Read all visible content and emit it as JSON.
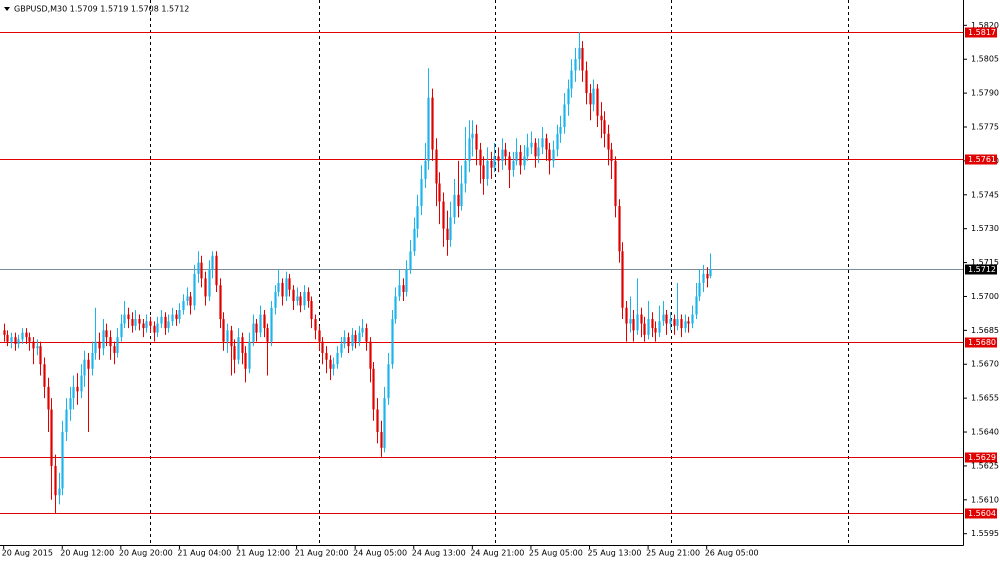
{
  "chart_data": {
    "type": "candlestick",
    "title": "GBPUSD,M30  1.5709 1.5719 1.5708 1.5712",
    "up_color": "#1cb4ec",
    "down_color": "#e00000",
    "level_color": "#e00000",
    "last_color": "#7a8d99",
    "xlim": [
      -1,
      262
    ],
    "ylim": [
      1.559,
      1.5829
    ],
    "xticks": [
      {
        "value": 0,
        "label": "20 Aug 2015"
      },
      {
        "value": 16,
        "label": "20 Aug 12:00"
      },
      {
        "value": 32,
        "label": "20 Aug 20:00"
      },
      {
        "value": 48,
        "label": "21 Aug 04:00"
      },
      {
        "value": 64,
        "label": "21 Aug 12:00"
      },
      {
        "value": 80,
        "label": "21 Aug 20:00"
      },
      {
        "value": 96,
        "label": "24 Aug 05:00"
      },
      {
        "value": 112,
        "label": "24 Aug 13:00"
      },
      {
        "value": 128,
        "label": "24 Aug 21:00"
      },
      {
        "value": 144,
        "label": "25 Aug 05:00"
      },
      {
        "value": 160,
        "label": "25 Aug 13:00"
      },
      {
        "value": 176,
        "label": "25 Aug 21:00"
      },
      {
        "value": 192,
        "label": "26 Aug 05:00"
      }
    ],
    "yticks": [
      {
        "value": 1.5595,
        "label": "1.5595"
      },
      {
        "value": 1.561,
        "label": "1.5610"
      },
      {
        "value": 1.5625,
        "label": "1.5625"
      },
      {
        "value": 1.564,
        "label": "1.5640"
      },
      {
        "value": 1.5655,
        "label": "1.5655"
      },
      {
        "value": 1.567,
        "label": "1.5670"
      },
      {
        "value": 1.5685,
        "label": "1.5685"
      },
      {
        "value": 1.57,
        "label": "1.5700"
      },
      {
        "value": 1.5715,
        "label": "1.5715"
      },
      {
        "value": 1.573,
        "label": "1.5730"
      },
      {
        "value": 1.5745,
        "label": "1.5745"
      },
      {
        "value": 1.576,
        "label": "1.5760"
      },
      {
        "value": 1.5775,
        "label": "1.5775"
      },
      {
        "value": 1.579,
        "label": "1.5790"
      },
      {
        "value": 1.5805,
        "label": "1.5805"
      },
      {
        "value": 1.582,
        "label": "1.5820"
      }
    ],
    "levels": [
      {
        "value": 1.5817,
        "label": "1.5817"
      },
      {
        "value": 1.5761,
        "label": "1.5761"
      },
      {
        "value": 1.568,
        "label": "1.5680"
      },
      {
        "value": 1.5629,
        "label": "1.5629"
      },
      {
        "value": 1.5604,
        "label": "1.5604"
      }
    ],
    "last_price": {
      "value": 1.5712,
      "label": "1.5712"
    },
    "candles": [
      [
        1.5685,
        1.5688,
        1.568,
        1.5683
      ],
      [
        1.5683,
        1.5685,
        1.5678,
        1.568
      ],
      [
        1.568,
        1.5684,
        1.5677,
        1.5682
      ],
      [
        1.5682,
        1.5684,
        1.5676,
        1.5679
      ],
      [
        1.5679,
        1.5683,
        1.5677,
        1.5681
      ],
      [
        1.5681,
        1.5686,
        1.5679,
        1.5684
      ],
      [
        1.5684,
        1.5686,
        1.5679,
        1.5682
      ],
      [
        1.5682,
        1.5684,
        1.5676,
        1.568
      ],
      [
        1.568,
        1.5682,
        1.567,
        1.5677
      ],
      [
        1.5677,
        1.5681,
        1.5674,
        1.5678
      ],
      [
        1.5678,
        1.568,
        1.5665,
        1.567
      ],
      [
        1.567,
        1.5673,
        1.5655,
        1.566
      ],
      [
        1.566,
        1.5664,
        1.564,
        1.565
      ],
      [
        1.565,
        1.5655,
        1.561,
        1.5625
      ],
      [
        1.5625,
        1.563,
        1.5604,
        1.5612
      ],
      [
        1.5612,
        1.5622,
        1.5608,
        1.5615
      ],
      [
        1.5615,
        1.5645,
        1.5612,
        1.564
      ],
      [
        1.564,
        1.5655,
        1.5636,
        1.565
      ],
      [
        1.565,
        1.566,
        1.5645,
        1.5655
      ],
      [
        1.5655,
        1.5665,
        1.565,
        1.566
      ],
      [
        1.566,
        1.5666,
        1.5652,
        1.5658
      ],
      [
        1.5658,
        1.567,
        1.5655,
        1.5665
      ],
      [
        1.5665,
        1.5676,
        1.566,
        1.5672
      ],
      [
        1.5672,
        1.5675,
        1.564,
        1.5668
      ],
      [
        1.5668,
        1.568,
        1.5665,
        1.5675
      ],
      [
        1.5675,
        1.5695,
        1.5672,
        1.568
      ],
      [
        1.568,
        1.5684,
        1.5672,
        1.5677
      ],
      [
        1.5677,
        1.569,
        1.5674,
        1.5685
      ],
      [
        1.5685,
        1.5688,
        1.5678,
        1.5682
      ],
      [
        1.5682,
        1.5685,
        1.5672,
        1.5678
      ],
      [
        1.5678,
        1.568,
        1.567,
        1.5675
      ],
      [
        1.5675,
        1.5686,
        1.5673,
        1.5682
      ],
      [
        1.5682,
        1.5692,
        1.568,
        1.5688
      ],
      [
        1.5688,
        1.5698,
        1.5686,
        1.5692
      ],
      [
        1.5692,
        1.5695,
        1.5686,
        1.569
      ],
      [
        1.569,
        1.5693,
        1.5684,
        1.5687
      ],
      [
        1.5687,
        1.5694,
        1.5685,
        1.569
      ],
      [
        1.569,
        1.5692,
        1.5685,
        1.5688
      ],
      [
        1.5688,
        1.569,
        1.5682,
        1.5686
      ],
      [
        1.5686,
        1.5692,
        1.5684,
        1.5689
      ],
      [
        1.5689,
        1.5691,
        1.5684,
        1.5687
      ],
      [
        1.5687,
        1.5689,
        1.568,
        1.5684
      ],
      [
        1.5684,
        1.5691,
        1.5682,
        1.5688
      ],
      [
        1.5688,
        1.5694,
        1.5686,
        1.5691
      ],
      [
        1.5691,
        1.5693,
        1.5683,
        1.5686
      ],
      [
        1.5686,
        1.5692,
        1.5684,
        1.5689
      ],
      [
        1.5689,
        1.5695,
        1.5687,
        1.5692
      ],
      [
        1.5692,
        1.5694,
        1.5687,
        1.569
      ],
      [
        1.569,
        1.5697,
        1.5688,
        1.5694
      ],
      [
        1.5694,
        1.5701,
        1.5692,
        1.5698
      ],
      [
        1.5698,
        1.5704,
        1.5696,
        1.57
      ],
      [
        1.57,
        1.5702,
        1.5692,
        1.5696
      ],
      [
        1.5696,
        1.5714,
        1.5694,
        1.571
      ],
      [
        1.571,
        1.572,
        1.5706,
        1.5715
      ],
      [
        1.5715,
        1.5718,
        1.5704,
        1.5708
      ],
      [
        1.5708,
        1.5711,
        1.5696,
        1.57
      ],
      [
        1.57,
        1.5716,
        1.5698,
        1.5712
      ],
      [
        1.5712,
        1.572,
        1.5708,
        1.5718
      ],
      [
        1.5718,
        1.572,
        1.5702,
        1.5705
      ],
      [
        1.5705,
        1.5708,
        1.5686,
        1.569
      ],
      [
        1.569,
        1.5693,
        1.5676,
        1.568
      ],
      [
        1.568,
        1.5688,
        1.5675,
        1.5685
      ],
      [
        1.5685,
        1.5687,
        1.5665,
        1.5678
      ],
      [
        1.5678,
        1.5681,
        1.5666,
        1.5672
      ],
      [
        1.5672,
        1.5686,
        1.567,
        1.5682
      ],
      [
        1.5682,
        1.5684,
        1.567,
        1.5675
      ],
      [
        1.5675,
        1.5678,
        1.5662,
        1.5668
      ],
      [
        1.5668,
        1.5684,
        1.5666,
        1.568
      ],
      [
        1.568,
        1.5692,
        1.5678,
        1.5688
      ],
      [
        1.5688,
        1.569,
        1.568,
        1.5684
      ],
      [
        1.5684,
        1.5696,
        1.5682,
        1.5692
      ],
      [
        1.5692,
        1.5694,
        1.5682,
        1.5686
      ],
      [
        1.5686,
        1.5688,
        1.5665,
        1.568
      ],
      [
        1.568,
        1.5698,
        1.5678,
        1.5695
      ],
      [
        1.5695,
        1.5705,
        1.5692,
        1.5702
      ],
      [
        1.5702,
        1.5712,
        1.57,
        1.5706
      ],
      [
        1.5706,
        1.5708,
        1.5696,
        1.57
      ],
      [
        1.57,
        1.5711,
        1.5698,
        1.5708
      ],
      [
        1.5708,
        1.571,
        1.57,
        1.5703
      ],
      [
        1.5703,
        1.5705,
        1.5694,
        1.5698
      ],
      [
        1.5698,
        1.5704,
        1.5696,
        1.57
      ],
      [
        1.57,
        1.5702,
        1.5693,
        1.5696
      ],
      [
        1.5696,
        1.5705,
        1.5694,
        1.5702
      ],
      [
        1.5702,
        1.5704,
        1.5695,
        1.5698
      ],
      [
        1.5698,
        1.57,
        1.5686,
        1.569
      ],
      [
        1.569,
        1.5692,
        1.5681,
        1.5685
      ],
      [
        1.5685,
        1.5687,
        1.5676,
        1.568
      ],
      [
        1.568,
        1.5682,
        1.567,
        1.5675
      ],
      [
        1.5675,
        1.5678,
        1.5666,
        1.5672
      ],
      [
        1.5672,
        1.5674,
        1.5663,
        1.5668
      ],
      [
        1.5668,
        1.5673,
        1.5665,
        1.567
      ],
      [
        1.567,
        1.5678,
        1.5668,
        1.5675
      ],
      [
        1.5675,
        1.5682,
        1.5673,
        1.5679
      ],
      [
        1.5679,
        1.5685,
        1.5677,
        1.5682
      ],
      [
        1.5682,
        1.5684,
        1.5675,
        1.5678
      ],
      [
        1.5678,
        1.5686,
        1.5676,
        1.5683
      ],
      [
        1.5683,
        1.5685,
        1.5677,
        1.568
      ],
      [
        1.568,
        1.5687,
        1.5678,
        1.5684
      ],
      [
        1.5684,
        1.569,
        1.5682,
        1.5686
      ],
      [
        1.5686,
        1.5688,
        1.5676,
        1.568
      ],
      [
        1.568,
        1.5682,
        1.5662,
        1.5668
      ],
      [
        1.5668,
        1.5671,
        1.5645,
        1.565
      ],
      [
        1.565,
        1.5655,
        1.5635,
        1.564
      ],
      [
        1.564,
        1.5645,
        1.5629,
        1.5633
      ],
      [
        1.5633,
        1.566,
        1.5631,
        1.5655
      ],
      [
        1.5655,
        1.5675,
        1.5652,
        1.567
      ],
      [
        1.567,
        1.5694,
        1.5668,
        1.569
      ],
      [
        1.569,
        1.5704,
        1.5688,
        1.57
      ],
      [
        1.57,
        1.5712,
        1.5698,
        1.5705
      ],
      [
        1.5705,
        1.5708,
        1.5698,
        1.5702
      ],
      [
        1.5702,
        1.5716,
        1.57,
        1.5712
      ],
      [
        1.5712,
        1.5725,
        1.571,
        1.572
      ],
      [
        1.572,
        1.5735,
        1.5718,
        1.573
      ],
      [
        1.573,
        1.5745,
        1.5726,
        1.574
      ],
      [
        1.574,
        1.5758,
        1.5736,
        1.5752
      ],
      [
        1.5752,
        1.5768,
        1.5748,
        1.576
      ],
      [
        1.576,
        1.5801,
        1.5756,
        1.5788
      ],
      [
        1.5788,
        1.5792,
        1.576,
        1.5765
      ],
      [
        1.5765,
        1.577,
        1.574,
        1.575
      ],
      [
        1.575,
        1.5755,
        1.5732,
        1.5742
      ],
      [
        1.5742,
        1.5746,
        1.5722,
        1.573
      ],
      [
        1.573,
        1.5738,
        1.5718,
        1.5725
      ],
      [
        1.5725,
        1.5742,
        1.5722,
        1.5735
      ],
      [
        1.5735,
        1.5752,
        1.5732,
        1.5745
      ],
      [
        1.5745,
        1.576,
        1.5735,
        1.574
      ],
      [
        1.574,
        1.5758,
        1.5738,
        1.575
      ],
      [
        1.575,
        1.5775,
        1.5746,
        1.576
      ],
      [
        1.576,
        1.5778,
        1.5755,
        1.577
      ],
      [
        1.577,
        1.5778,
        1.5762,
        1.5772
      ],
      [
        1.5772,
        1.5776,
        1.5758,
        1.5765
      ],
      [
        1.5765,
        1.5768,
        1.575,
        1.5758
      ],
      [
        1.5758,
        1.5762,
        1.5745,
        1.5752
      ],
      [
        1.5752,
        1.5766,
        1.5749,
        1.576
      ],
      [
        1.576,
        1.5764,
        1.5752,
        1.5757
      ],
      [
        1.5757,
        1.5768,
        1.5755,
        1.5762
      ],
      [
        1.5762,
        1.5766,
        1.5755,
        1.576
      ],
      [
        1.576,
        1.577,
        1.5756,
        1.5765
      ],
      [
        1.5765,
        1.5768,
        1.5758,
        1.5762
      ],
      [
        1.5762,
        1.5764,
        1.5748,
        1.5756
      ],
      [
        1.5756,
        1.5764,
        1.5753,
        1.576
      ],
      [
        1.576,
        1.577,
        1.5758,
        1.5764
      ],
      [
        1.5764,
        1.5767,
        1.5754,
        1.5758
      ],
      [
        1.5758,
        1.5767,
        1.5756,
        1.5762
      ],
      [
        1.5762,
        1.5772,
        1.576,
        1.5766
      ],
      [
        1.5766,
        1.5773,
        1.5763,
        1.5768
      ],
      [
        1.5768,
        1.577,
        1.5757,
        1.5762
      ],
      [
        1.5762,
        1.577,
        1.5759,
        1.5766
      ],
      [
        1.5766,
        1.5775,
        1.5763,
        1.577
      ],
      [
        1.577,
        1.5772,
        1.576,
        1.5765
      ],
      [
        1.5765,
        1.5768,
        1.5754,
        1.576
      ],
      [
        1.576,
        1.5769,
        1.5757,
        1.5765
      ],
      [
        1.5765,
        1.5776,
        1.5762,
        1.5772
      ],
      [
        1.5772,
        1.578,
        1.5768,
        1.5775
      ],
      [
        1.5775,
        1.579,
        1.5772,
        1.5785
      ],
      [
        1.5785,
        1.5796,
        1.578,
        1.5792
      ],
      [
        1.5792,
        1.5805,
        1.5788,
        1.58
      ],
      [
        1.58,
        1.581,
        1.5795,
        1.5805
      ],
      [
        1.5805,
        1.5817,
        1.58,
        1.581
      ],
      [
        1.581,
        1.5813,
        1.5795,
        1.58
      ],
      [
        1.58,
        1.5804,
        1.5785,
        1.579
      ],
      [
        1.579,
        1.5794,
        1.5778,
        1.5785
      ],
      [
        1.5785,
        1.5796,
        1.5782,
        1.5792
      ],
      [
        1.5792,
        1.5794,
        1.5775,
        1.578
      ],
      [
        1.578,
        1.5786,
        1.577,
        1.5778
      ],
      [
        1.5778,
        1.5782,
        1.5766,
        1.5772
      ],
      [
        1.5772,
        1.5776,
        1.5758,
        1.5765
      ],
      [
        1.5765,
        1.5768,
        1.5752,
        1.576
      ],
      [
        1.576,
        1.5762,
        1.5735,
        1.574
      ],
      [
        1.574,
        1.5743,
        1.5715,
        1.572
      ],
      [
        1.572,
        1.5724,
        1.569,
        1.5695
      ],
      [
        1.5695,
        1.5698,
        1.568,
        1.5688
      ],
      [
        1.5688,
        1.57,
        1.5684,
        1.569
      ],
      [
        1.569,
        1.5694,
        1.568,
        1.5685
      ],
      [
        1.5685,
        1.5708,
        1.5683,
        1.5692
      ],
      [
        1.5692,
        1.5695,
        1.5682,
        1.5688
      ],
      [
        1.5688,
        1.5691,
        1.568,
        1.5683
      ],
      [
        1.5683,
        1.5698,
        1.5681,
        1.569
      ],
      [
        1.569,
        1.5693,
        1.5682,
        1.5686
      ],
      [
        1.5686,
        1.5689,
        1.568,
        1.5684
      ],
      [
        1.5684,
        1.5696,
        1.5682,
        1.5689
      ],
      [
        1.5689,
        1.5698,
        1.5687,
        1.5692
      ],
      [
        1.5692,
        1.5694,
        1.5683,
        1.5688
      ],
      [
        1.5688,
        1.5693,
        1.5685,
        1.569
      ],
      [
        1.569,
        1.5692,
        1.5683,
        1.5687
      ],
      [
        1.5687,
        1.5706,
        1.5685,
        1.569
      ],
      [
        1.569,
        1.5692,
        1.5682,
        1.5686
      ],
      [
        1.5686,
        1.5692,
        1.5684,
        1.5689
      ],
      [
        1.5689,
        1.5691,
        1.5684,
        1.5688
      ],
      [
        1.5688,
        1.5696,
        1.5686,
        1.5692
      ],
      [
        1.5692,
        1.5706,
        1.569,
        1.57
      ],
      [
        1.57,
        1.5712,
        1.5698,
        1.5706
      ],
      [
        1.5706,
        1.5714,
        1.5702,
        1.571
      ],
      [
        1.571,
        1.5713,
        1.5704,
        1.5708
      ],
      [
        1.5709,
        1.5719,
        1.5708,
        1.5712
      ]
    ]
  }
}
